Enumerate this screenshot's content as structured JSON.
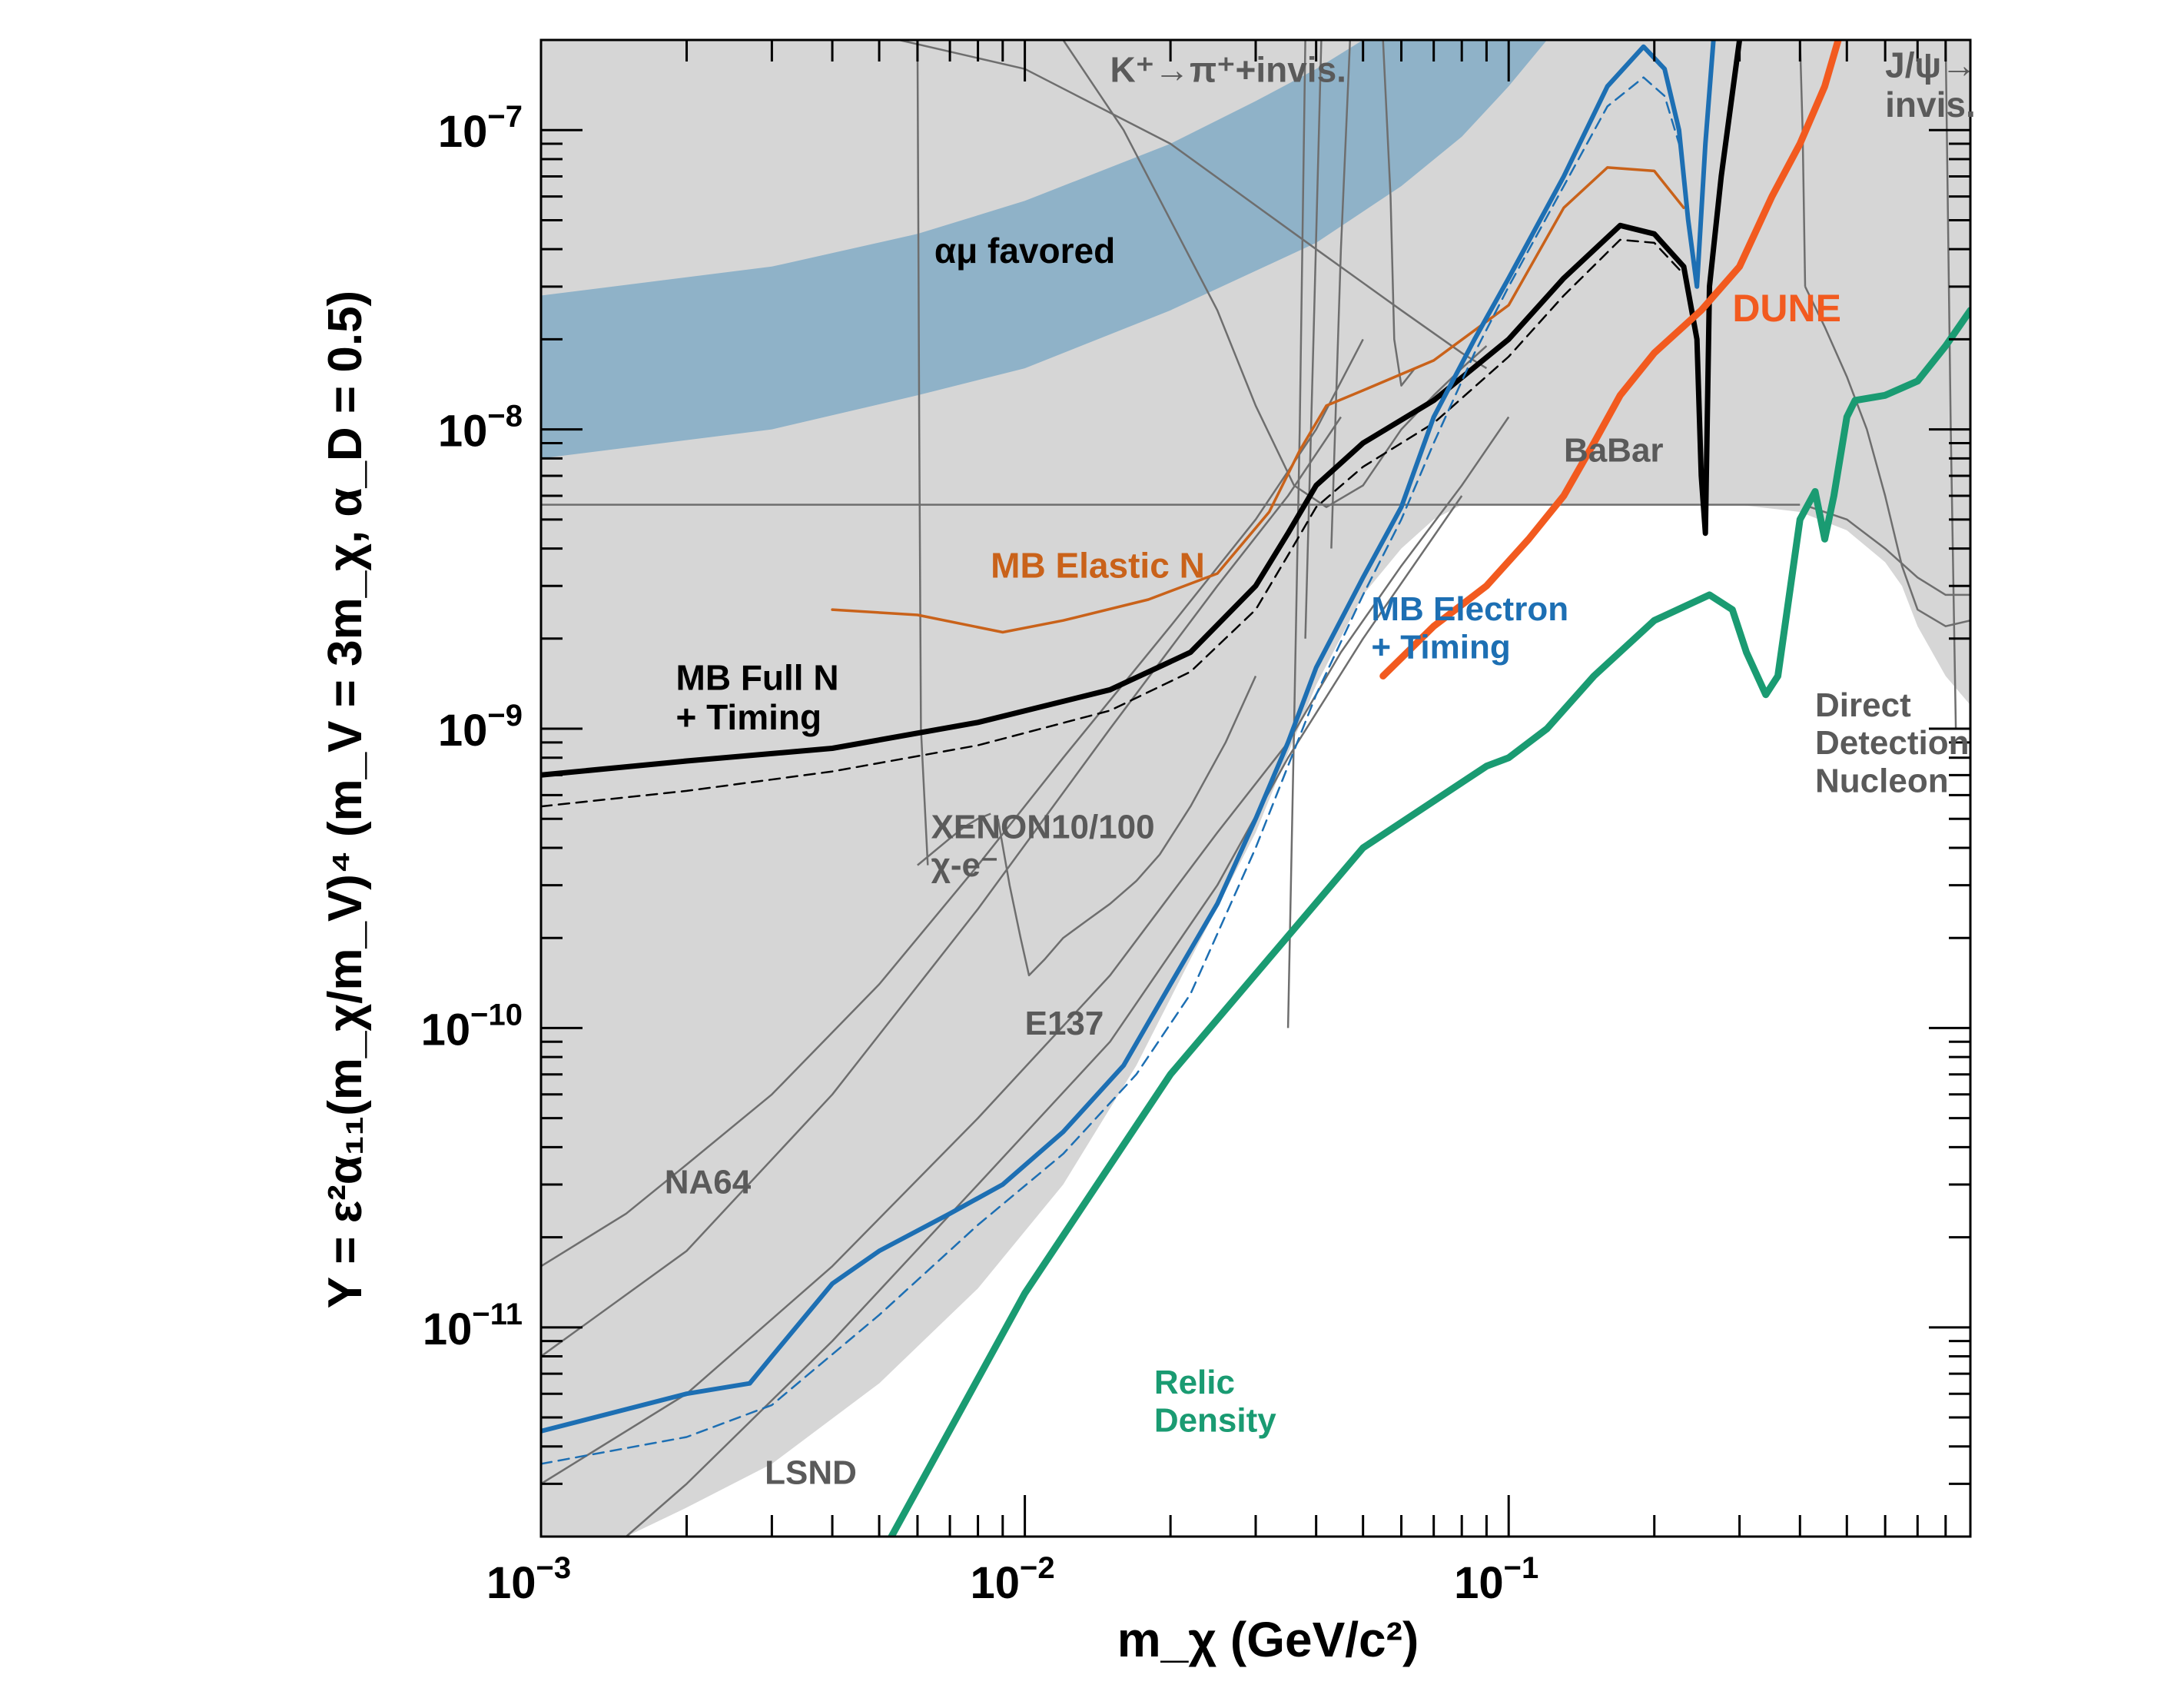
{
  "chart_data": {
    "type": "line",
    "xscale": "log",
    "yscale": "log",
    "xlim": [
      0.001,
      0.9
    ],
    "ylim": [
      2e-12,
      2e-07
    ],
    "xlabel": "m_χ (GeV/c²)",
    "ylabel": "Y = ε²α₁₁(m_χ/m_V)⁴ (m_V = 3m_χ, α_D = 0.5)",
    "x_ticks": [
      {
        "value": 0.001,
        "base": "10",
        "exp": "−3"
      },
      {
        "value": 0.01,
        "base": "10",
        "exp": "−2"
      },
      {
        "value": 0.1,
        "base": "10",
        "exp": "−1"
      }
    ],
    "y_ticks": [
      {
        "value": 1e-11,
        "base": "10",
        "exp": "−11"
      },
      {
        "value": 1e-10,
        "base": "10",
        "exp": "−10"
      },
      {
        "value": 1e-09,
        "base": "10",
        "exp": "−9"
      },
      {
        "value": 1e-08,
        "base": "10",
        "exp": "−8"
      },
      {
        "value": 1e-07,
        "base": "10",
        "exp": "−7"
      }
    ],
    "colors": {
      "excluded": "#d6d6d6",
      "grey_line": "#6e6e6e",
      "band": "#8fb2c8",
      "mb_full": "#000000",
      "mb_elastic": "#c9621a",
      "mb_electron": "#1d6fb3",
      "dune": "#f25a1f",
      "relic": "#1a9b72",
      "label_grey": "#5a5a5a"
    },
    "excluded_region_boundary": [
      [
        0.001,
        2e-12
      ],
      [
        0.0015,
        2e-12
      ],
      [
        0.002,
        2.5e-12
      ],
      [
        0.003,
        3.5e-12
      ],
      [
        0.005,
        6.5e-12
      ],
      [
        0.008,
        1.35e-11
      ],
      [
        0.012,
        3e-11
      ],
      [
        0.017,
        7.5e-11
      ],
      [
        0.022,
        1.7e-10
      ],
      [
        0.03,
        4.5e-10
      ],
      [
        0.04,
        1.4e-09
      ],
      [
        0.05,
        2.8e-09
      ],
      [
        0.06,
        4e-09
      ],
      [
        0.07,
        5e-09
      ],
      [
        0.08,
        5.6e-09
      ],
      [
        0.1,
        5.6e-09
      ],
      [
        0.3,
        5.6e-09
      ],
      [
        0.4,
        5.3e-09
      ],
      [
        0.5,
        4.6e-09
      ],
      [
        0.6,
        3.6e-09
      ],
      [
        0.65,
        3e-09
      ],
      [
        0.7,
        2.2e-09
      ],
      [
        0.8,
        1.5e-09
      ],
      [
        0.9,
        1.2e-09
      ]
    ],
    "series": [
      {
        "key": "mb_full",
        "name": "MB Full N + Timing",
        "label_lines": [
          "MB Full N",
          "+ Timing"
        ],
        "color": "#000000",
        "width": 7,
        "dash": false,
        "x": [
          0.001,
          0.002,
          0.004,
          0.008,
          0.015,
          0.022,
          0.03,
          0.035,
          0.04,
          0.05,
          0.07,
          0.1,
          0.13,
          0.17,
          0.2,
          0.23,
          0.245,
          0.25,
          0.255,
          0.26,
          0.275,
          0.3
        ],
        "y": [
          7e-10,
          7.8e-10,
          8.6e-10,
          1.05e-09,
          1.35e-09,
          1.8e-09,
          3e-09,
          4.5e-09,
          6.5e-09,
          9e-09,
          1.25e-08,
          2e-08,
          3.2e-08,
          4.8e-08,
          4.5e-08,
          3.5e-08,
          2e-08,
          7e-09,
          4.5e-09,
          3e-08,
          7e-08,
          2e-07
        ]
      },
      {
        "key": "mb_full_dashed",
        "name": "",
        "color": "#000000",
        "width": 2.5,
        "dash": true,
        "x": [
          0.001,
          0.002,
          0.004,
          0.008,
          0.015,
          0.022,
          0.03,
          0.035,
          0.04,
          0.05,
          0.07,
          0.1,
          0.13,
          0.17,
          0.2,
          0.23
        ],
        "y": [
          5.5e-10,
          6.2e-10,
          7.2e-10,
          8.8e-10,
          1.15e-09,
          1.55e-09,
          2.5e-09,
          3.8e-09,
          5.5e-09,
          7.5e-09,
          1.05e-08,
          1.75e-08,
          2.8e-08,
          4.3e-08,
          4.2e-08,
          3.3e-08
        ]
      },
      {
        "key": "mb_elastic",
        "name": "MB Elastic N",
        "label_lines": [
          "MB Elastic N"
        ],
        "color": "#c9621a",
        "width": 3.5,
        "dash": false,
        "x": [
          0.004,
          0.006,
          0.009,
          0.012,
          0.018,
          0.025,
          0.032,
          0.037,
          0.042,
          0.05,
          0.07,
          0.1,
          0.13,
          0.16,
          0.2,
          0.23
        ],
        "y": [
          2.5e-09,
          2.4e-09,
          2.1e-09,
          2.3e-09,
          2.7e-09,
          3.3e-09,
          5.3e-09,
          8.5e-09,
          1.2e-08,
          1.35e-08,
          1.7e-08,
          2.6e-08,
          5.5e-08,
          7.5e-08,
          7.3e-08,
          5.5e-08
        ]
      },
      {
        "key": "mb_electron",
        "name": "MB Electron + Timing",
        "label_lines": [
          "MB Electron",
          "+ Timing"
        ],
        "color": "#1d6fb3",
        "width": 6,
        "dash": false,
        "x": [
          0.001,
          0.002,
          0.0027,
          0.003,
          0.004,
          0.005,
          0.007,
          0.009,
          0.012,
          0.016,
          0.02,
          0.025,
          0.03,
          0.035,
          0.04,
          0.05,
          0.06,
          0.07,
          0.085,
          0.1,
          0.13,
          0.16,
          0.19,
          0.21,
          0.225,
          0.235,
          0.245,
          0.255,
          0.265
        ],
        "y": [
          4.5e-12,
          6e-12,
          6.5e-12,
          8e-12,
          1.4e-11,
          1.8e-11,
          2.4e-11,
          3e-11,
          4.5e-11,
          7.5e-11,
          1.4e-10,
          2.6e-10,
          5e-10,
          9e-10,
          1.6e-09,
          3.2e-09,
          5.5e-09,
          1.1e-08,
          2e-08,
          3.2e-08,
          7e-08,
          1.4e-07,
          1.9e-07,
          1.6e-07,
          1e-07,
          5e-08,
          3e-08,
          9e-08,
          2e-07
        ]
      },
      {
        "key": "mb_electron_dashed",
        "name": "",
        "color": "#1d6fb3",
        "width": 2.5,
        "dash": true,
        "x": [
          0.001,
          0.002,
          0.003,
          0.005,
          0.008,
          0.012,
          0.017,
          0.022,
          0.03,
          0.04,
          0.05,
          0.06,
          0.07,
          0.085,
          0.1,
          0.13,
          0.16,
          0.19,
          0.21,
          0.225
        ],
        "y": [
          3.5e-12,
          4.3e-12,
          5.5e-12,
          1.1e-11,
          2.2e-11,
          3.8e-11,
          7e-11,
          1.3e-10,
          4e-10,
          1.3e-09,
          2.8e-09,
          5e-09,
          9e-09,
          1.8e-08,
          3e-08,
          6.5e-08,
          1.2e-07,
          1.5e-07,
          1.3e-07,
          9e-08
        ]
      },
      {
        "key": "dune",
        "name": "DUNE",
        "label_lines": [
          "DUNE"
        ],
        "color": "#f25a1f",
        "width": 9,
        "dash": false,
        "x": [
          0.055,
          0.07,
          0.09,
          0.11,
          0.13,
          0.15,
          0.17,
          0.2,
          0.25,
          0.3,
          0.35,
          0.4,
          0.45,
          0.48
        ],
        "y": [
          1.5e-09,
          2.2e-09,
          3e-09,
          4.3e-09,
          6e-09,
          9e-09,
          1.3e-08,
          1.8e-08,
          2.5e-08,
          3.5e-08,
          6e-08,
          9e-08,
          1.4e-07,
          2e-07
        ]
      },
      {
        "key": "relic",
        "name": "Relic Density",
        "label_lines": [
          "Relic",
          "Density"
        ],
        "color": "#1a9b72",
        "width": 9,
        "dash": false,
        "x": [
          0.0053,
          0.01,
          0.02,
          0.05,
          0.09,
          0.1,
          0.12,
          0.15,
          0.2,
          0.26,
          0.29,
          0.31,
          0.34,
          0.36,
          0.4,
          0.43,
          0.45,
          0.47,
          0.5,
          0.52,
          0.6,
          0.7,
          0.8,
          0.9
        ],
        "y": [
          2e-12,
          1.3e-11,
          7e-11,
          4e-10,
          7.5e-10,
          8e-10,
          1e-09,
          1.5e-09,
          2.3e-09,
          2.8e-09,
          2.5e-09,
          1.8e-09,
          1.3e-09,
          1.5e-09,
          5e-09,
          6.2e-09,
          4.3e-09,
          6e-09,
          1.1e-08,
          1.25e-08,
          1.3e-08,
          1.45e-08,
          1.9e-08,
          2.5e-08
        ]
      }
    ],
    "grey_lines": [
      {
        "x": [
          0.001,
          0.0015,
          0.002,
          0.003,
          0.005,
          0.008,
          0.012,
          0.02,
          0.03,
          0.04,
          0.05
        ],
        "y": [
          1.6e-11,
          2.4e-11,
          3.5e-11,
          6e-11,
          1.4e-10,
          3.5e-10,
          8e-10,
          2.2e-09,
          5e-09,
          1e-08,
          2e-08
        ]
      },
      {
        "x": [
          0.001,
          0.002,
          0.004,
          0.008,
          0.015,
          0.025,
          0.035,
          0.045
        ],
        "y": [
          8e-12,
          1.8e-11,
          6e-11,
          2.5e-10,
          1e-09,
          3e-09,
          6e-09,
          1.1e-08
        ]
      },
      {
        "x": [
          0.001,
          0.002,
          0.004,
          0.008,
          0.015,
          0.025,
          0.035,
          0.045,
          0.06,
          0.08,
          0.1
        ],
        "y": [
          3e-12,
          6e-12,
          1.6e-11,
          5e-11,
          1.5e-10,
          4.5e-10,
          9e-10,
          1.8e-09,
          3.5e-09,
          6.5e-09,
          1.1e-08
        ]
      },
      {
        "x": [
          0.0015,
          0.002,
          0.004,
          0.008,
          0.015,
          0.025,
          0.035,
          0.05,
          0.08
        ],
        "y": [
          2e-12,
          3e-12,
          9e-12,
          3e-11,
          9e-11,
          3e-10,
          8e-10,
          2e-09,
          6e-09
        ]
      },
      {
        "x": [
          0.012,
          0.016,
          0.02,
          0.025,
          0.03,
          0.036,
          0.042,
          0.05,
          0.06,
          0.07,
          0.08,
          0.09
        ],
        "y": [
          2e-07,
          1e-07,
          5e-08,
          2.5e-08,
          1.2e-08,
          6.5e-09,
          5.5e-09,
          6.5e-09,
          1e-08,
          1.3e-08,
          1.6e-08,
          1.9e-08
        ]
      },
      {
        "x": [
          0.0055,
          0.01,
          0.02,
          0.04,
          0.06,
          0.08,
          0.09
        ],
        "y": [
          2e-07,
          1.6e-07,
          9e-08,
          4e-08,
          2.5e-08,
          1.8e-08,
          1.6e-08
        ]
      },
      {
        "x": [
          0.006,
          0.00605,
          0.0061,
          0.0063
        ],
        "y": [
          2e-07,
          1e-08,
          1e-09,
          3.5e-10
        ]
      },
      {
        "x": [
          0.0088,
          0.0093,
          0.0098,
          0.0102,
          0.011,
          0.012,
          0.0135,
          0.015,
          0.017,
          0.019,
          0.022,
          0.026,
          0.03
        ],
        "y": [
          5e-10,
          3e-10,
          2e-10,
          1.5e-10,
          1.7e-10,
          2e-10,
          2.3e-10,
          2.6e-10,
          3.1e-10,
          3.8e-10,
          5.5e-10,
          9e-10,
          1.5e-09
        ]
      },
      {
        "x": [
          0.006,
          0.007,
          0.0075,
          0.008,
          0.0085
        ],
        "y": [
          3.5e-10,
          4.3e-10,
          4.7e-10,
          5e-10,
          5.2e-10
        ]
      },
      {
        "x": [
          0.035,
          0.036,
          0.037,
          0.038
        ],
        "y": [
          1e-10,
          1e-09,
          1e-08,
          2e-07
        ]
      },
      {
        "x": [
          0.038,
          0.0395,
          0.041
        ],
        "y": [
          2e-09,
          2e-08,
          2e-07
        ]
      },
      {
        "x": [
          0.043,
          0.045,
          0.047
        ],
        "y": [
          4e-09,
          4e-08,
          2e-07
        ]
      },
      {
        "x": [
          0.055,
          0.057,
          0.058,
          0.06,
          0.064
        ],
        "y": [
          2e-07,
          6e-08,
          2e-08,
          1.4e-08,
          1.6e-08
        ]
      },
      {
        "x": [
          0.4,
          0.405,
          0.41
        ],
        "y": [
          2e-07,
          1e-07,
          3e-08
        ]
      },
      {
        "x": [
          0.41,
          0.45,
          0.5,
          0.55,
          0.6,
          0.65,
          0.7,
          0.8,
          0.9
        ],
        "y": [
          3e-08,
          2.2e-08,
          1.5e-08,
          1e-08,
          6e-09,
          3.5e-09,
          2.5e-09,
          2.2e-09,
          2.3e-09
        ]
      },
      {
        "x": [
          0.42,
          0.5,
          0.6,
          0.7,
          0.8,
          0.9
        ],
        "y": [
          5.5e-09,
          5e-09,
          4e-09,
          3.2e-09,
          2.8e-09,
          2.8e-09
        ]
      },
      {
        "x": [
          0.8,
          0.82,
          0.84
        ],
        "y": [
          2e-07,
          1e-08,
          1e-09
        ]
      }
    ],
    "hline": {
      "y": 5.6e-09,
      "x_from": 0.001,
      "x_to": 0.4
    },
    "band": {
      "lower": {
        "x": [
          0.001,
          0.003,
          0.006,
          0.01,
          0.02,
          0.04,
          0.06,
          0.08,
          0.1,
          0.12
        ],
        "y": [
          8e-09,
          1e-08,
          1.3e-08,
          1.6e-08,
          2.5e-08,
          4.2e-08,
          6.5e-08,
          9.5e-08,
          1.4e-07,
          2e-07
        ]
      },
      "upper": {
        "x": [
          0.001,
          0.003,
          0.006,
          0.01,
          0.02,
          0.03,
          0.04,
          0.05
        ],
        "y": [
          2.8e-08,
          3.5e-08,
          4.5e-08,
          5.8e-08,
          9e-08,
          1.25e-07,
          1.6e-07,
          2e-07
        ]
      }
    },
    "annotations": [
      {
        "key": "kpi",
        "lines": [
          "K⁺→π⁺+invis."
        ],
        "x": 0.015,
        "y": 1.45e-07,
        "color": "#5a5a5a",
        "size": 46
      },
      {
        "key": "jpsi",
        "lines": [
          "J/ψ→",
          "invis."
        ],
        "x": 0.6,
        "y": 1.5e-07,
        "color": "#5a5a5a",
        "size": 46
      },
      {
        "key": "amu",
        "lines": [
          "αμ favored"
        ],
        "x": 0.0065,
        "y": 3.6e-08,
        "color": "#000000",
        "size": 46
      },
      {
        "key": "babar",
        "lines": [
          "BaBar"
        ],
        "x": 0.13,
        "y": 7.8e-09,
        "color": "#5a5a5a",
        "size": 44
      },
      {
        "key": "xenon",
        "lines": [
          "XENON10/100",
          "χ-e⁻"
        ],
        "x": 0.0064,
        "y": 4.3e-10,
        "color": "#5a5a5a",
        "size": 44
      },
      {
        "key": "e137",
        "lines": [
          "E137"
        ],
        "x": 0.01,
        "y": 9.5e-11,
        "color": "#5a5a5a",
        "size": 44
      },
      {
        "key": "na64",
        "lines": [
          "NA64"
        ],
        "x": 0.0018,
        "y": 2.8e-11,
        "color": "#5a5a5a",
        "size": 44
      },
      {
        "key": "lsnd",
        "lines": [
          "LSND"
        ],
        "x": 0.0029,
        "y": 3e-12,
        "color": "#5a5a5a",
        "size": 44
      },
      {
        "key": "ddn",
        "lines": [
          "Direct",
          "Detection",
          "Nucleon"
        ],
        "x": 0.43,
        "y": 1.1e-09,
        "color": "#5a5a5a",
        "size": 44
      },
      {
        "key": "mb_elastic_lbl",
        "lines": [
          "MB Elastic N"
        ],
        "x": 0.0085,
        "y": 3.2e-09,
        "color": "#c9621a",
        "size": 46
      },
      {
        "key": "mb_full_lbl",
        "lines": [
          "MB Full N",
          "+ Timing"
        ],
        "x": 0.0019,
        "y": 1.35e-09,
        "color": "#000000",
        "size": 46
      },
      {
        "key": "mb_electron_lbl",
        "lines": [
          "MB Electron",
          "+ Timing"
        ],
        "x": 0.052,
        "y": 2.3e-09,
        "color": "#1d6fb3",
        "size": 44
      },
      {
        "key": "dune_lbl",
        "lines": [
          "DUNE"
        ],
        "x": 0.29,
        "y": 2.3e-08,
        "color": "#f25a1f",
        "size": 50
      },
      {
        "key": "relic_lbl",
        "lines": [
          "Relic",
          "Density"
        ],
        "x": 0.0185,
        "y": 6e-12,
        "color": "#1a9b72",
        "size": 44
      }
    ]
  }
}
